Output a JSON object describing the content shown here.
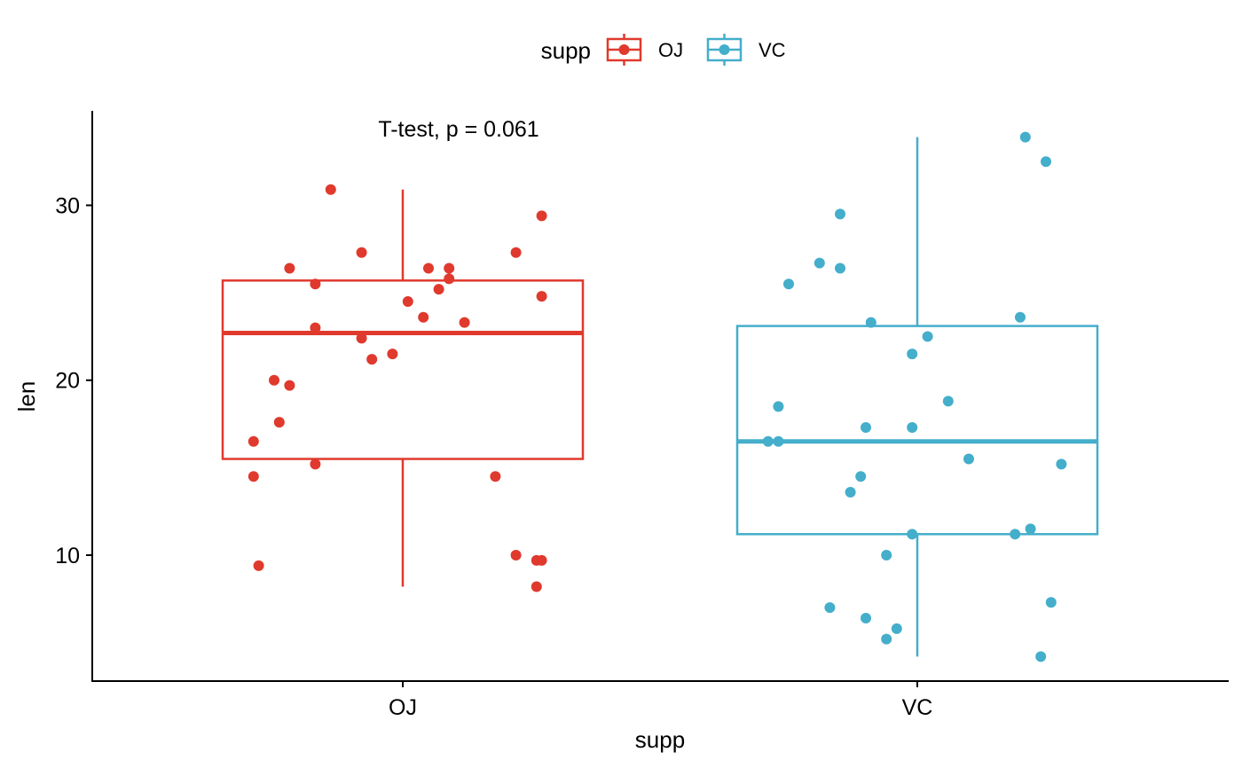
{
  "chart_data": {
    "type": "boxplot",
    "xlabel": "supp",
    "ylabel": "len",
    "categories": [
      "OJ",
      "VC"
    ],
    "yticks": [
      10,
      20,
      30
    ],
    "ylim": [
      2.8,
      35.4
    ],
    "legend": {
      "title": "supp",
      "placement": "top",
      "entries": [
        {
          "label": "OJ",
          "color": "#E0392D"
        },
        {
          "label": "VC",
          "color": "#44AECB"
        }
      ]
    },
    "annotation": "T-test, p = 0.061",
    "series": [
      {
        "name": "OJ",
        "color": "#E0392D",
        "box": {
          "min": 8.2,
          "q1": 15.5,
          "median": 22.7,
          "q3": 25.7,
          "max": 30.9
        },
        "points": [
          {
            "x": 0.86,
            "y": 30.9
          },
          {
            "x": 1.27,
            "y": 29.4
          },
          {
            "x": 0.92,
            "y": 27.3
          },
          {
            "x": 1.22,
            "y": 27.3
          },
          {
            "x": 0.78,
            "y": 26.4
          },
          {
            "x": 1.05,
            "y": 26.4
          },
          {
            "x": 1.09,
            "y": 26.4
          },
          {
            "x": 1.09,
            "y": 25.8
          },
          {
            "x": 0.83,
            "y": 25.5
          },
          {
            "x": 1.07,
            "y": 25.2
          },
          {
            "x": 1.27,
            "y": 24.8
          },
          {
            "x": 1.01,
            "y": 24.5
          },
          {
            "x": 1.04,
            "y": 23.6
          },
          {
            "x": 1.12,
            "y": 23.3
          },
          {
            "x": 0.83,
            "y": 23.0
          },
          {
            "x": 0.92,
            "y": 22.4
          },
          {
            "x": 0.98,
            "y": 21.5
          },
          {
            "x": 0.94,
            "y": 21.2
          },
          {
            "x": 0.75,
            "y": 20.0
          },
          {
            "x": 0.78,
            "y": 19.7
          },
          {
            "x": 0.76,
            "y": 17.6
          },
          {
            "x": 0.71,
            "y": 16.5
          },
          {
            "x": 0.83,
            "y": 15.2
          },
          {
            "x": 0.71,
            "y": 14.5
          },
          {
            "x": 1.18,
            "y": 14.5
          },
          {
            "x": 1.22,
            "y": 10.0
          },
          {
            "x": 1.26,
            "y": 9.7
          },
          {
            "x": 1.27,
            "y": 9.7
          },
          {
            "x": 0.72,
            "y": 9.4
          },
          {
            "x": 1.26,
            "y": 8.2
          }
        ]
      },
      {
        "name": "VC",
        "color": "#44AECB",
        "box": {
          "min": 4.2,
          "q1": 11.2,
          "median": 16.5,
          "q3": 23.1,
          "max": 33.9
        },
        "points": [
          {
            "x": 2.21,
            "y": 33.9
          },
          {
            "x": 2.25,
            "y": 32.5
          },
          {
            "x": 1.85,
            "y": 29.5
          },
          {
            "x": 1.81,
            "y": 26.7
          },
          {
            "x": 1.85,
            "y": 26.4
          },
          {
            "x": 1.75,
            "y": 25.5
          },
          {
            "x": 2.2,
            "y": 23.6
          },
          {
            "x": 1.91,
            "y": 23.3
          },
          {
            "x": 2.02,
            "y": 22.5
          },
          {
            "x": 1.99,
            "y": 21.5
          },
          {
            "x": 2.06,
            "y": 18.8
          },
          {
            "x": 1.73,
            "y": 18.5
          },
          {
            "x": 1.9,
            "y": 17.3
          },
          {
            "x": 1.99,
            "y": 17.3
          },
          {
            "x": 1.71,
            "y": 16.5
          },
          {
            "x": 1.73,
            "y": 16.5
          },
          {
            "x": 2.1,
            "y": 15.5
          },
          {
            "x": 2.28,
            "y": 15.2
          },
          {
            "x": 1.89,
            "y": 14.5
          },
          {
            "x": 1.87,
            "y": 13.6
          },
          {
            "x": 2.22,
            "y": 11.5
          },
          {
            "x": 1.99,
            "y": 11.2
          },
          {
            "x": 2.19,
            "y": 11.2
          },
          {
            "x": 1.94,
            "y": 10.0
          },
          {
            "x": 2.26,
            "y": 7.3
          },
          {
            "x": 1.83,
            "y": 7.0
          },
          {
            "x": 1.9,
            "y": 6.4
          },
          {
            "x": 1.96,
            "y": 5.8
          },
          {
            "x": 1.94,
            "y": 5.2
          },
          {
            "x": 2.24,
            "y": 4.2
          }
        ]
      }
    ]
  }
}
